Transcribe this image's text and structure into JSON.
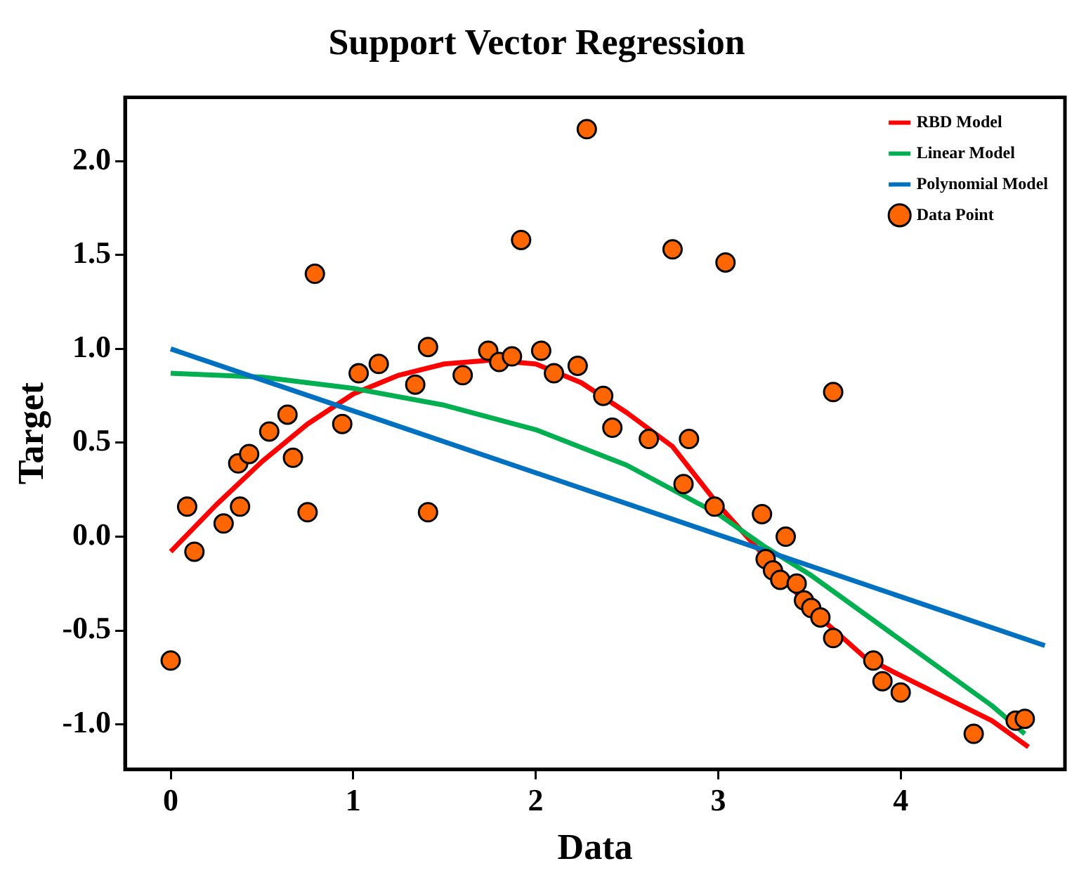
{
  "chart_data": {
    "type": "scatter",
    "title": "Support Vector Regression",
    "xlabel": "Data",
    "ylabel": "Target",
    "xlim": [
      -0.25,
      4.9
    ],
    "ylim": [
      -1.24,
      2.34
    ],
    "xticks": [
      0,
      1,
      2,
      3,
      4
    ],
    "yticks": [
      {
        "value": -1,
        "label": "-1.0"
      },
      {
        "value": -0.5,
        "label": "-0.5"
      },
      {
        "value": 0,
        "label": "0.0"
      },
      {
        "value": 0.5,
        "label": "0.5"
      },
      {
        "value": 1,
        "label": "1.0"
      },
      {
        "value": 1.5,
        "label": "1.5"
      },
      {
        "value": 2,
        "label": "2.0"
      }
    ],
    "grid": false,
    "legend": "top right",
    "series": [
      {
        "name": "RBD Model",
        "type": "line",
        "color": "#ff0000",
        "marker": "none",
        "x": [
          0,
          0.25,
          0.5,
          0.75,
          1,
          1.25,
          1.5,
          1.75,
          2,
          2.25,
          2.5,
          2.75,
          3,
          3.25,
          3.5,
          3.8,
          4,
          4.5,
          4.7
        ],
        "values": [
          -0.08,
          0.17,
          0.4,
          0.6,
          0.76,
          0.86,
          0.92,
          0.94,
          0.92,
          0.82,
          0.66,
          0.48,
          0.17,
          -0.1,
          -0.38,
          -0.64,
          -0.74,
          -0.98,
          -1.12
        ]
      },
      {
        "name": "Linear Model",
        "type": "line",
        "color": "#00b050",
        "marker": "none",
        "x": [
          0,
          0.5,
          1,
          1.5,
          2,
          2.5,
          3,
          3.25,
          3.5,
          4,
          4.5,
          4.68
        ],
        "values": [
          0.87,
          0.85,
          0.79,
          0.7,
          0.57,
          0.38,
          0.12,
          -0.05,
          -0.2,
          -0.55,
          -0.9,
          -1.05
        ]
      },
      {
        "name": "Polynomial Model",
        "type": "line",
        "color": "#0070c0",
        "marker": "none",
        "x": [
          0,
          4.79
        ],
        "values": [
          1.0,
          -0.58
        ]
      },
      {
        "name": "Data Point",
        "type": "scatter",
        "color": "#ff6600",
        "marker": "circle",
        "x": [
          0,
          0.09,
          0.13,
          0.29,
          0.37,
          0.38,
          0.43,
          0.54,
          0.64,
          0.67,
          0.75,
          0.79,
          0.94,
          1.03,
          1.14,
          1.34,
          1.41,
          1.41,
          1.6,
          1.74,
          1.8,
          1.87,
          1.92,
          2.03,
          2.1,
          2.23,
          2.28,
          2.37,
          2.42,
          2.62,
          2.75,
          2.81,
          2.84,
          2.98,
          3.04,
          3.24,
          3.26,
          3.3,
          3.34,
          3.37,
          3.43,
          3.47,
          3.51,
          3.56,
          3.63,
          3.63,
          3.85,
          3.9,
          4.0,
          4.4,
          4.63,
          4.68
        ],
        "values": [
          -0.66,
          0.16,
          -0.08,
          0.07,
          0.39,
          0.16,
          0.44,
          0.56,
          0.65,
          0.42,
          0.13,
          1.4,
          0.6,
          0.87,
          0.92,
          0.81,
          1.01,
          0.13,
          0.86,
          0.99,
          0.93,
          0.96,
          1.58,
          0.99,
          0.87,
          0.91,
          2.17,
          0.75,
          0.58,
          0.52,
          1.53,
          0.28,
          0.52,
          0.16,
          1.46,
          0.12,
          -0.12,
          -0.18,
          -0.23,
          0.0,
          -0.25,
          -0.34,
          -0.38,
          -0.43,
          -0.54,
          0.77,
          -0.66,
          -0.77,
          -0.83,
          -1.05,
          -0.98,
          -0.97
        ]
      }
    ]
  }
}
